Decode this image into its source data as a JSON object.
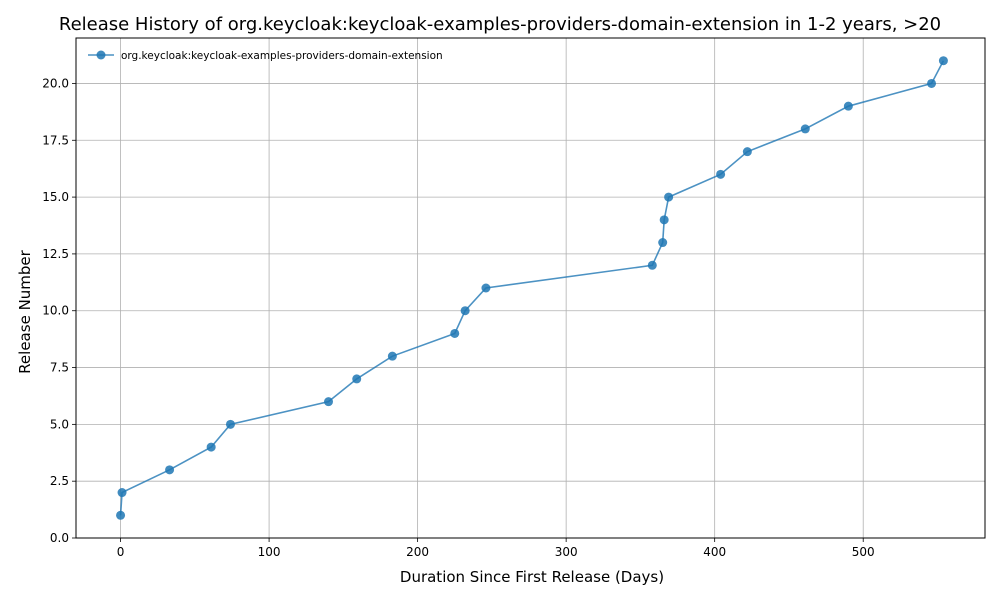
{
  "chart_data": {
    "type": "line",
    "title": "Release History of org.keycloak:keycloak-examples-providers-domain-extension in 1-2 years, >20",
    "xlabel": "Duration Since First Release (Days)",
    "ylabel": "Release Number",
    "xlim": [
      -30,
      582
    ],
    "ylim": [
      0,
      22
    ],
    "xticks": [
      0,
      100,
      200,
      300,
      400,
      500
    ],
    "yticks": [
      0.0,
      2.5,
      5.0,
      7.5,
      10.0,
      12.5,
      15.0,
      17.5,
      20.0
    ],
    "ytick_labels": [
      "0.0",
      "2.5",
      "5.0",
      "7.5",
      "10.0",
      "12.5",
      "15.0",
      "17.5",
      "20.0"
    ],
    "grid": true,
    "legend_placement": "top-left",
    "series": [
      {
        "name": "org.keycloak:keycloak-examples-providers-domain-extension",
        "color": "#1f77b4",
        "x": [
          0,
          1,
          33,
          61,
          74,
          140,
          159,
          183,
          225,
          232,
          246,
          358,
          365,
          366,
          369,
          404,
          422,
          461,
          490,
          546,
          554
        ],
        "y": [
          1,
          2,
          3,
          4,
          5,
          6,
          7,
          8,
          9,
          10,
          11,
          12,
          13,
          14,
          15,
          16,
          17,
          18,
          19,
          20,
          21
        ]
      }
    ]
  }
}
